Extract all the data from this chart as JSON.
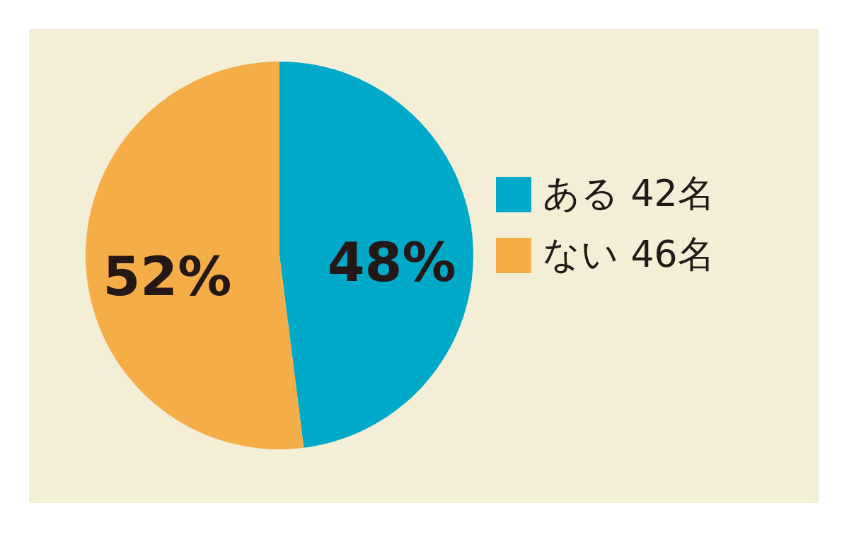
{
  "chart_data": {
    "type": "pie",
    "categories": [
      "ある 42名",
      "ない 46名"
    ],
    "values": [
      48,
      52
    ],
    "colors": [
      "#00a9c8",
      "#f5ad48"
    ],
    "value_labels": [
      "48%",
      "52%"
    ],
    "legend": "right"
  }
}
